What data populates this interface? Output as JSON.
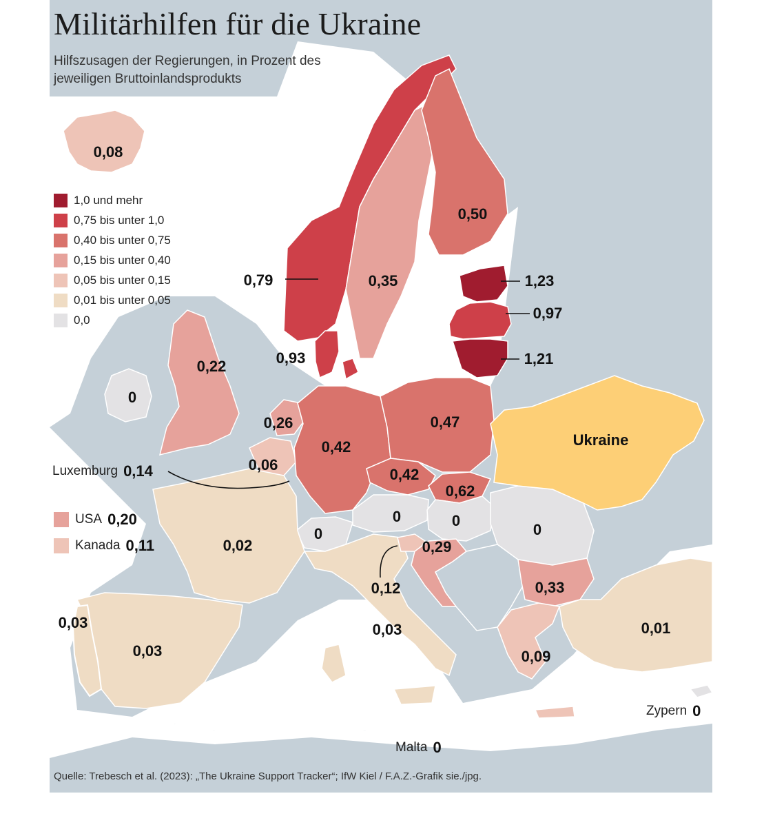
{
  "title": "Militärhilfen für die Ukraine",
  "subtitle": "Hilfszusagen der Regierungen, in Prozent des jeweiligen Bruttoinlandsprodukts",
  "legend": [
    {
      "label": "1,0 und mehr",
      "color": "#a01c2f"
    },
    {
      "label": "0,75 bis unter 1,0",
      "color": "#ce4049"
    },
    {
      "label": "0,40 bis unter 0,75",
      "color": "#d9736c"
    },
    {
      "label": "0,15 bis unter 0,40",
      "color": "#e6a29b"
    },
    {
      "label": "0,05 bis unter 0,15",
      "color": "#eec4b7"
    },
    {
      "label": "0,01 bis unter 0,05",
      "color": "#efdcc4"
    },
    {
      "label": "0,0",
      "color": "#e3e2e4"
    }
  ],
  "colors": {
    "sea": "#ffffff",
    "non_participant_land": "#c5d0d8",
    "ukraine": "#fdcf76"
  },
  "countries": {
    "iceland": "0,08",
    "norway": "0,79",
    "sweden": "0,35",
    "finland": "0,50",
    "estonia": "1,23",
    "latvia": "0,97",
    "lithuania": "1,21",
    "denmark": "0,93",
    "uk": "0,22",
    "ireland": "0",
    "netherlands": "0,26",
    "belgium": "0,06",
    "germany": "0,42",
    "poland": "0,47",
    "czechia": "0,42",
    "slovakia": "0,62",
    "austria": "0",
    "hungary": "0",
    "switzerland": "0",
    "romania": "0",
    "france": "0,02",
    "slovenia": "0,12",
    "croatia": "0,29",
    "bulgaria": "0,33",
    "portugal": "0,03",
    "spain": "0,03",
    "italy": "0,03",
    "greece": "0,09",
    "turkey": "0,01",
    "ukraine_label": "Ukraine"
  },
  "external": {
    "luxembourg": {
      "name": "Luxemburg",
      "value": "0,14"
    },
    "usa": {
      "name": "USA",
      "value": "0,20",
      "color": "#e6a29b"
    },
    "canada": {
      "name": "Kanada",
      "value": "0,11",
      "color": "#eec4b7"
    },
    "cyprus": {
      "name": "Zypern",
      "value": "0"
    },
    "malta": {
      "name": "Malta",
      "value": "0"
    }
  },
  "source": "Quelle: Trebesch et al. (2023): „The Ukraine Support Tracker“; IfW Kiel / F.A.Z.-Grafik sie./jpg."
}
